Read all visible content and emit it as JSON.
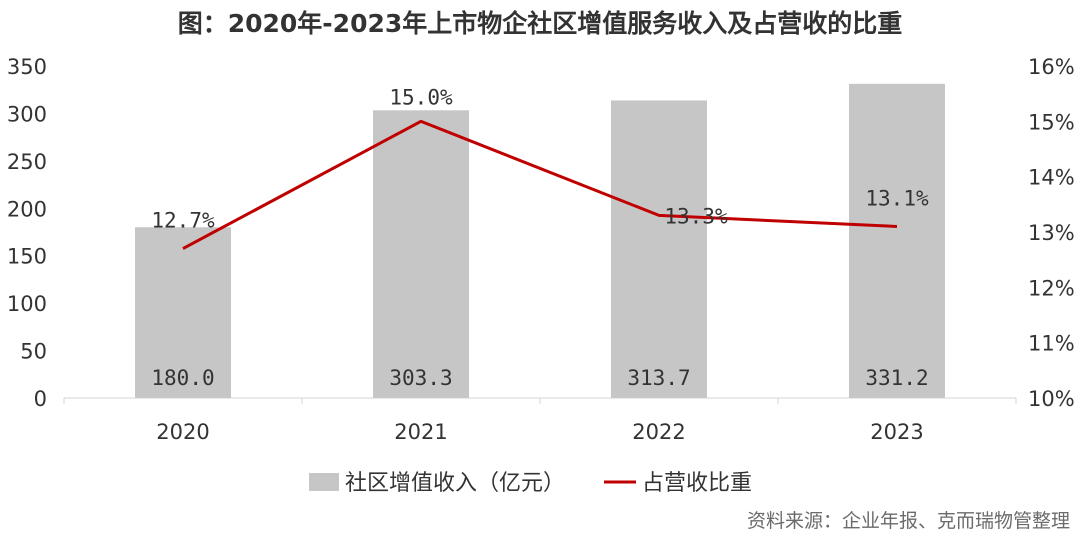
{
  "title": "图：2020年-2023年上市物企社区增值服务收入及占营收的比重",
  "source": "资料来源：企业年报、克而瑞物管整理",
  "chart_data": {
    "type": "bar",
    "title": "图：2020年-2023年上市物企社区增值服务收入及占营收的比重",
    "categories": [
      "2020",
      "2021",
      "2022",
      "2023"
    ],
    "series": [
      {
        "name": "社区增值收入（亿元）",
        "type": "bar",
        "axis": "left",
        "values": [
          180.0,
          303.3,
          313.7,
          331.2
        ],
        "labels": [
          "180.0",
          "303.3",
          "313.7",
          "331.2"
        ],
        "color": "#c6c6c6"
      },
      {
        "name": "占营收比重",
        "type": "line",
        "axis": "right",
        "values": [
          12.7,
          15.0,
          13.3,
          13.1
        ],
        "labels": [
          "12.7%",
          "15.0%",
          "13.3%",
          "13.1%"
        ],
        "color": "#c00000"
      }
    ],
    "y_left": {
      "min": 0,
      "max": 350,
      "ticks": [
        "0",
        "50",
        "100",
        "150",
        "200",
        "250",
        "300",
        "350"
      ]
    },
    "y_right": {
      "min": 10,
      "max": 16,
      "ticks": [
        "10%",
        "11%",
        "12%",
        "13%",
        "14%",
        "15%",
        "16%"
      ]
    },
    "xlabel": "",
    "ylabel": "",
    "grid": false,
    "legend_position": "bottom"
  }
}
